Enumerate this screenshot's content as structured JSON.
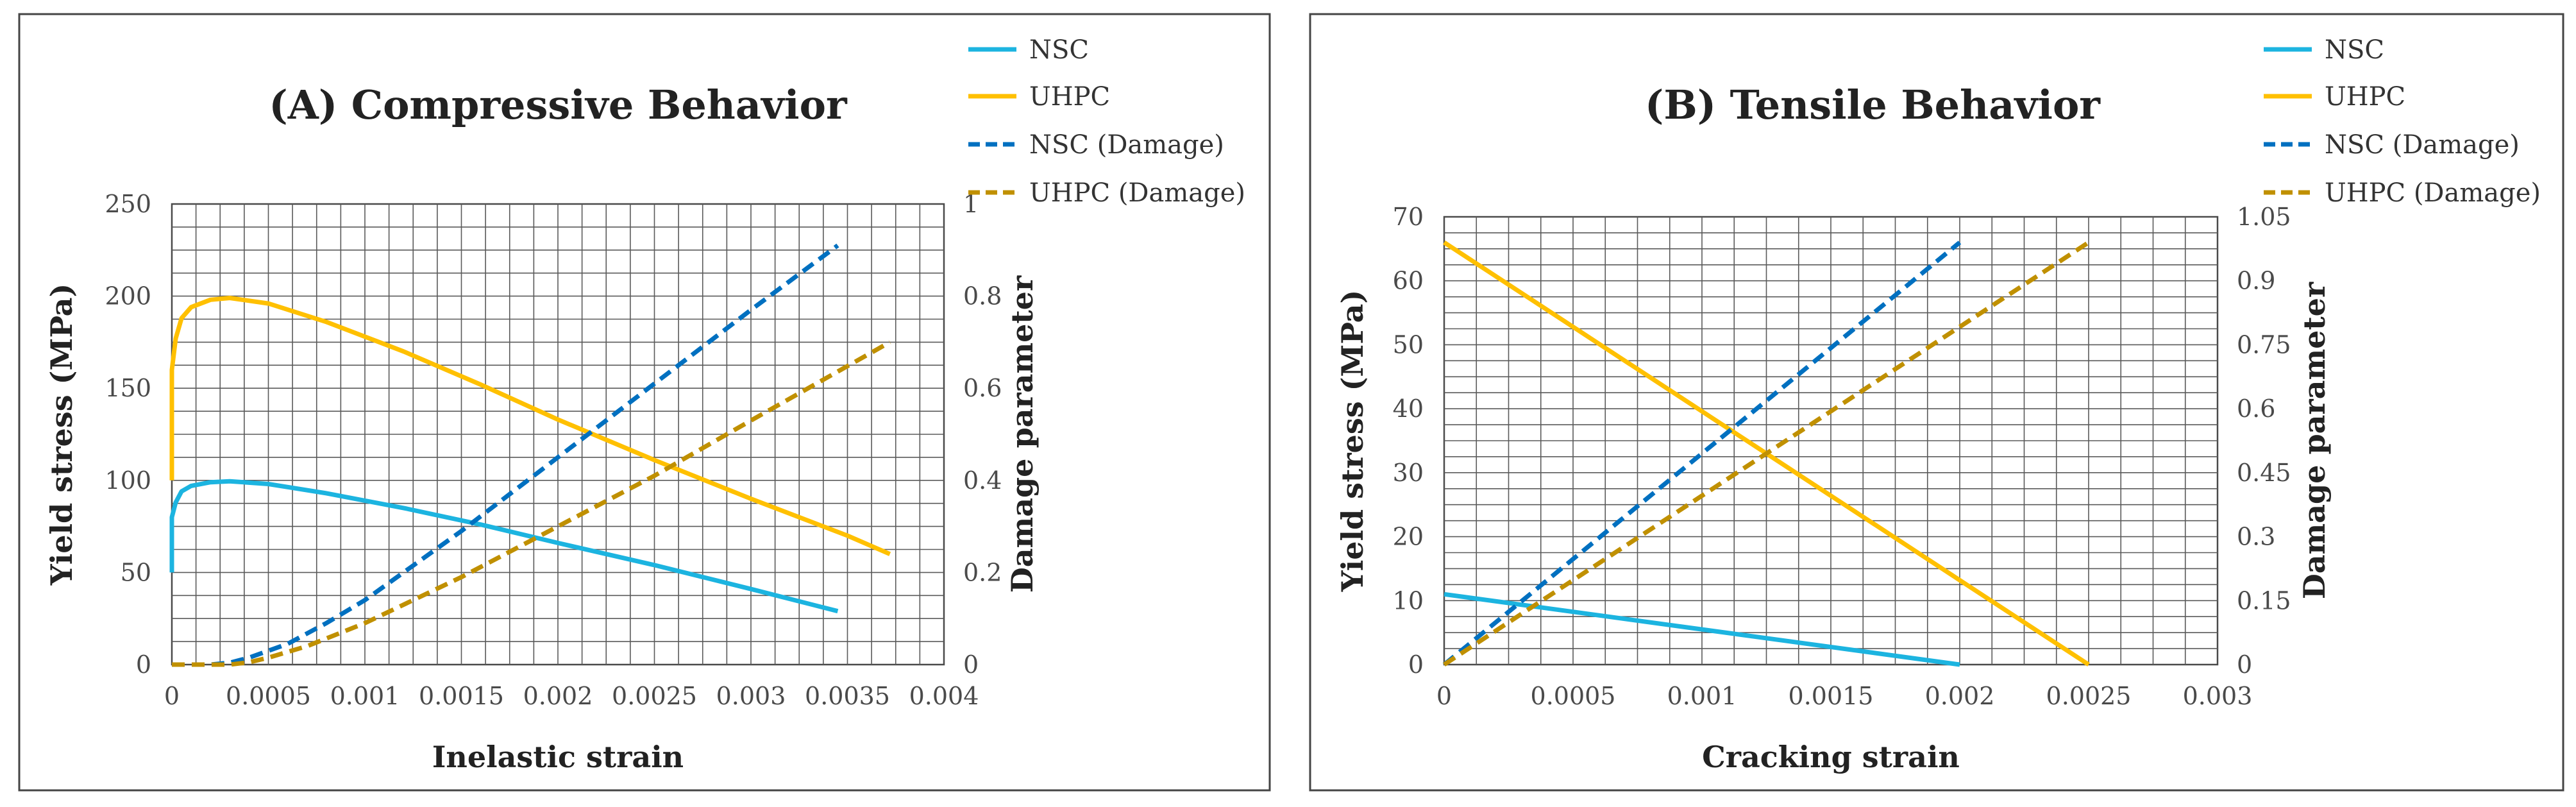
{
  "colors": {
    "nsc": "#1CB4E0",
    "uhpc": "#FFC000",
    "nsc_damage": "#0070C0",
    "uhpc_damage": "#C09000"
  },
  "chart_data": [
    {
      "type": "line",
      "title": "(A) Compressive Behavior",
      "xlabel": "Inelastic strain",
      "ylabel": "Yield stress (MPa)",
      "y2label": "Damage parameter",
      "xlim": [
        0,
        0.004
      ],
      "ylim": [
        0,
        250
      ],
      "y2lim": [
        0,
        1
      ],
      "x_tick_labels": [
        "0",
        "0.0005",
        "0.001",
        "0.0015",
        "0.002",
        "0.0025",
        "0.003",
        "0.0035",
        "0.004"
      ],
      "y_tick_labels": [
        "0",
        "50",
        "100",
        "150",
        "200",
        "250"
      ],
      "y2_tick_labels": [
        "0",
        "0.2",
        "0.4",
        "0.6",
        "0.8",
        "1"
      ],
      "legend": [
        "NSC",
        "UHPC",
        "NSC (Damage)",
        "UHPC (Damage)"
      ],
      "grid": true,
      "series": [
        {
          "name": "NSC",
          "axis": "left",
          "color": "#1CB4E0",
          "dash": "solid",
          "x": [
            0,
            0,
            2e-05,
            5e-05,
            0.0001,
            0.0002,
            0.0003,
            0.0005,
            0.0008,
            0.0012,
            0.0016,
            0.002,
            0.0025,
            0.003,
            0.00345
          ],
          "y": [
            50,
            80,
            88,
            94,
            97,
            99,
            99.5,
            98,
            93,
            85,
            76,
            66,
            54,
            41,
            29
          ]
        },
        {
          "name": "UHPC",
          "axis": "left",
          "color": "#FFC000",
          "dash": "solid",
          "x": [
            0,
            0,
            2e-05,
            5e-05,
            0.0001,
            0.0002,
            0.0003,
            0.0005,
            0.0008,
            0.0012,
            0.0016,
            0.002,
            0.0025,
            0.003,
            0.0035,
            0.00372
          ],
          "y": [
            100,
            160,
            177,
            188,
            194,
            198,
            199,
            196,
            186,
            170,
            152,
            133,
            111,
            90,
            70,
            60
          ]
        },
        {
          "name": "NSC (Damage)",
          "axis": "right",
          "color": "#0070C0",
          "dash": "dashed",
          "x": [
            0,
            0.0002,
            0.0003,
            0.0004,
            0.0006,
            0.0008,
            0.001,
            0.0015,
            0.002,
            0.0025,
            0.003,
            0.00345
          ],
          "y": [
            0,
            0,
            0.004,
            0.015,
            0.045,
            0.09,
            0.14,
            0.29,
            0.45,
            0.61,
            0.77,
            0.91
          ]
        },
        {
          "name": "UHPC (Damage)",
          "axis": "right",
          "color": "#C09000",
          "dash": "dashed",
          "x": [
            0,
            0.0003,
            0.0004,
            0.0005,
            0.0007,
            0.001,
            0.0015,
            0.002,
            0.0025,
            0.003,
            0.00372
          ],
          "y": [
            0,
            0,
            0.005,
            0.015,
            0.04,
            0.09,
            0.19,
            0.3,
            0.41,
            0.53,
            0.7
          ]
        }
      ]
    },
    {
      "type": "line",
      "title": "(B) Tensile Behavior",
      "xlabel": "Cracking strain",
      "ylabel": "Yield stress (MPa)",
      "y2label": "Damage parameter",
      "xlim": [
        0,
        0.003
      ],
      "ylim": [
        0,
        70
      ],
      "y2lim": [
        0,
        1.05
      ],
      "x_tick_labels": [
        "0",
        "0.0005",
        "0.001",
        "0.0015",
        "0.002",
        "0.0025",
        "0.003"
      ],
      "y_tick_labels": [
        "0",
        "10",
        "20",
        "30",
        "40",
        "50",
        "60",
        "70"
      ],
      "y2_tick_labels": [
        "0",
        "0.15",
        "0.3",
        "0.45",
        "0.6",
        "0.75",
        "0.9",
        "1.05"
      ],
      "legend": [
        "NSC",
        "UHPC",
        "NSC (Damage)",
        "UHPC (Damage)"
      ],
      "grid": true,
      "series": [
        {
          "name": "NSC",
          "axis": "left",
          "color": "#1CB4E0",
          "dash": "solid",
          "x": [
            0,
            0.002
          ],
          "y": [
            11,
            0
          ]
        },
        {
          "name": "UHPC",
          "axis": "left",
          "color": "#FFC000",
          "dash": "solid",
          "x": [
            0,
            0.0025
          ],
          "y": [
            66,
            0
          ]
        },
        {
          "name": "NSC (Damage)",
          "axis": "right",
          "color": "#0070C0",
          "dash": "dashed",
          "x": [
            0,
            0.002
          ],
          "y": [
            0,
            0.99
          ]
        },
        {
          "name": "UHPC (Damage)",
          "axis": "right",
          "color": "#C09000",
          "dash": "dashed",
          "x": [
            0,
            0.0025
          ],
          "y": [
            0,
            0.99
          ]
        }
      ]
    }
  ]
}
